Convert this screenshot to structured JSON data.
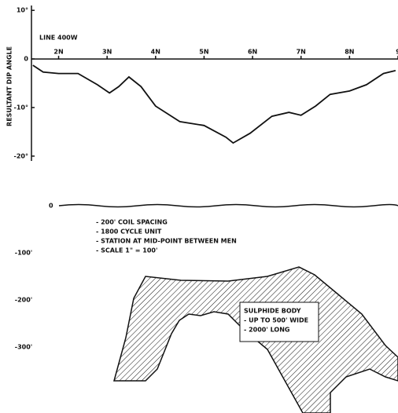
{
  "chart_data": {
    "type": "line",
    "y_axis_label": "RESULTANT DIP ANGLE",
    "annotation": "LINE 400W",
    "x": [
      1.47,
      1.68,
      2.0,
      2.4,
      2.8,
      3.05,
      3.24,
      3.45,
      3.7,
      4.0,
      4.5,
      5.0,
      5.45,
      5.6,
      5.95,
      6.4,
      6.75,
      7.0,
      7.3,
      7.6,
      8.0,
      8.35,
      8.7,
      8.95
    ],
    "series": [
      {
        "color": "#111111",
        "values": [
          -1.3,
          -2.7,
          -3,
          -3,
          -5.3,
          -7,
          -5.7,
          -3.7,
          -5.7,
          -9.7,
          -12.9,
          -13.7,
          -16.1,
          -17.3,
          -15.3,
          -11.8,
          -11,
          -11.6,
          -9.7,
          -7.3,
          -6.6,
          -5.3,
          -3,
          -2.4
        ]
      }
    ],
    "xlim": [
      1.44,
      9
    ],
    "xticks": [
      {
        "value": 2,
        "label": "2N"
      },
      {
        "value": 3,
        "label": "3N"
      },
      {
        "value": 4,
        "label": "4N"
      },
      {
        "value": 5,
        "label": "5N"
      },
      {
        "value": 6,
        "label": "6N"
      },
      {
        "value": 7,
        "label": "7N"
      },
      {
        "value": 8,
        "label": "8N"
      },
      9
    ],
    "ylim": [
      -21,
      11
    ],
    "yticks": [
      {
        "value": 10,
        "label": "10°"
      },
      0,
      {
        "value": -10,
        "label": "-10°"
      },
      {
        "value": -20,
        "label": "-20°"
      }
    ]
  },
  "section": {
    "depth_labels": [
      "0",
      "-100'",
      "-200'",
      "-300'"
    ],
    "notes": [
      "- 200' COIL SPACING",
      "- 1800 CYCLE UNIT",
      "- STATION AT MID-POINT BETWEEN MEN",
      "- SCALE 1\" = 100'"
    ],
    "body_legend": [
      "SULPHIDE BODY",
      "- UP TO 500' WIDE",
      "- 2000' LONG"
    ]
  }
}
